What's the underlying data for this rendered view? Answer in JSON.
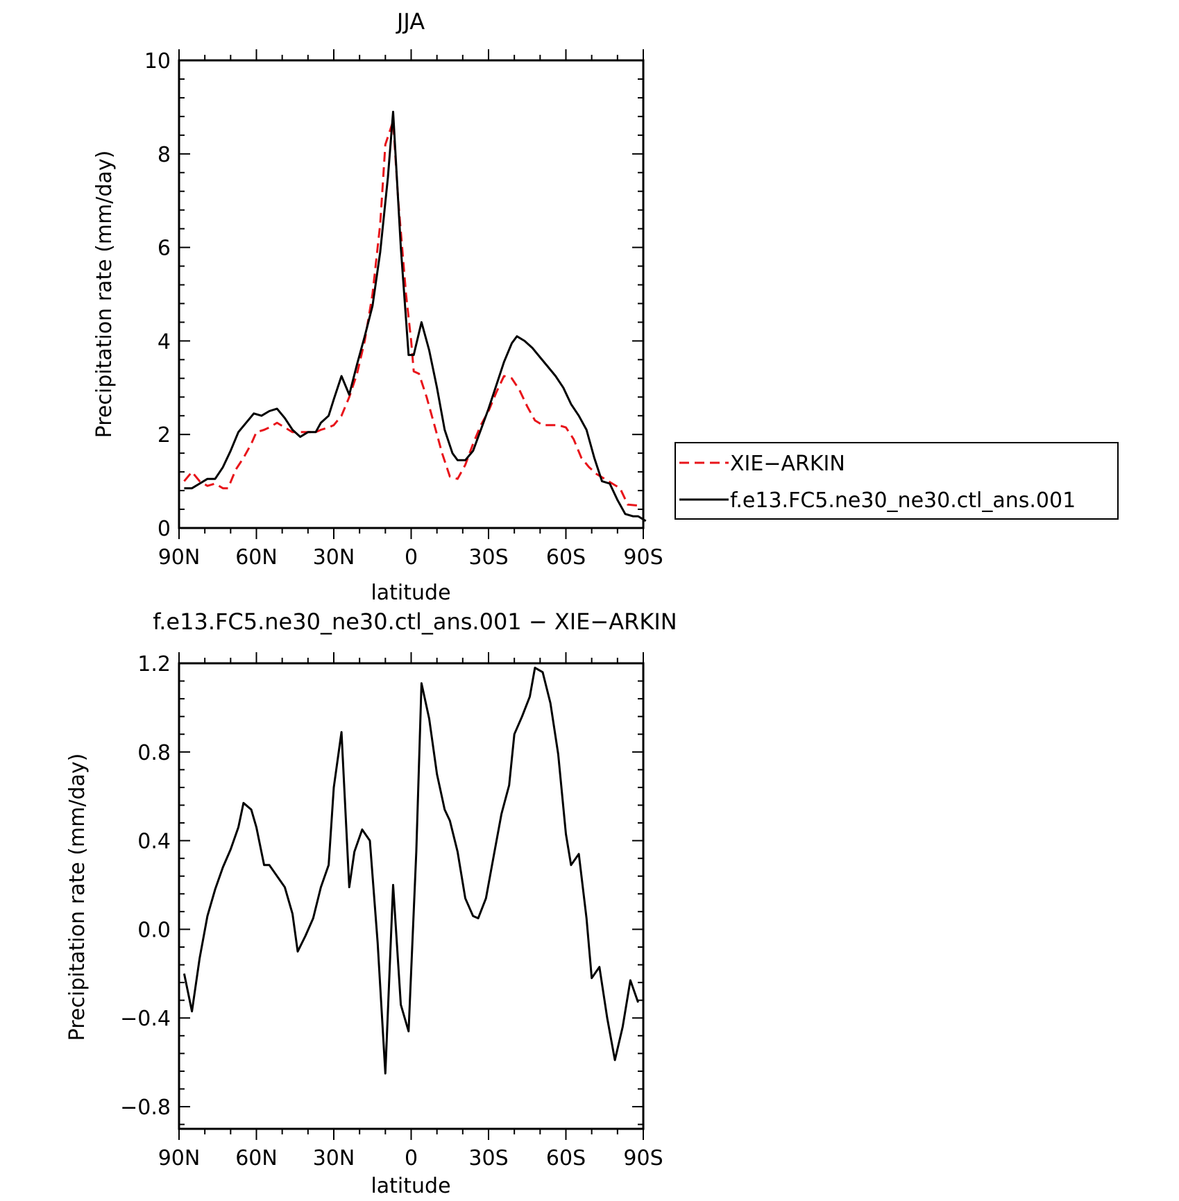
{
  "chart_data": [
    {
      "type": "line",
      "title": "JJA",
      "xlabel": "latitude",
      "ylabel": "Precipitation rate (mm/day)",
      "xlim": [
        90,
        -90
      ],
      "ylim": [
        0,
        10
      ],
      "x_ticks": [
        {
          "value": 90,
          "label": "90N"
        },
        {
          "value": 60,
          "label": "60N"
        },
        {
          "value": 30,
          "label": "30N"
        },
        {
          "value": 0,
          "label": "0"
        },
        {
          "value": -30,
          "label": "30S"
        },
        {
          "value": -60,
          "label": "60S"
        },
        {
          "value": -90,
          "label": "90S"
        }
      ],
      "y_ticks": [
        {
          "value": 0,
          "label": "0"
        },
        {
          "value": 2,
          "label": "2"
        },
        {
          "value": 4,
          "label": "4"
        },
        {
          "value": 6,
          "label": "6"
        },
        {
          "value": 8,
          "label": "8"
        },
        {
          "value": 10,
          "label": "10"
        }
      ],
      "legend_position": "right",
      "series": [
        {
          "name": "XIE−ARKIN",
          "color": "#e8141a",
          "dash": "dashed",
          "points": [
            [
              88,
              1.0
            ],
            [
              85,
              1.2
            ],
            [
              82,
              1.0
            ],
            [
              79,
              0.9
            ],
            [
              76,
              0.95
            ],
            [
              73,
              0.85
            ],
            [
              71,
              0.85
            ],
            [
              68,
              1.25
            ],
            [
              65,
              1.5
            ],
            [
              62,
              1.8
            ],
            [
              60,
              2.05
            ],
            [
              57,
              2.1
            ],
            [
              55,
              2.15
            ],
            [
              52,
              2.25
            ],
            [
              49,
              2.15
            ],
            [
              46,
              2.05
            ],
            [
              43,
              2.05
            ],
            [
              40,
              2.05
            ],
            [
              37,
              2.05
            ],
            [
              35,
              2.1
            ],
            [
              32,
              2.15
            ],
            [
              30,
              2.2
            ],
            [
              27,
              2.4
            ],
            [
              24,
              2.8
            ],
            [
              21,
              3.3
            ],
            [
              18,
              4.0
            ],
            [
              15,
              5.0
            ],
            [
              12,
              6.5
            ],
            [
              10,
              8.2
            ],
            [
              7,
              8.7
            ],
            [
              5,
              7.0
            ],
            [
              2,
              5.0
            ],
            [
              0,
              4.0
            ],
            [
              -1,
              3.35
            ],
            [
              -3,
              3.3
            ],
            [
              -6,
              2.8
            ],
            [
              -9,
              2.2
            ],
            [
              -12,
              1.6
            ],
            [
              -15,
              1.1
            ],
            [
              -18,
              1.05
            ],
            [
              -21,
              1.35
            ],
            [
              -24,
              1.8
            ],
            [
              -27,
              2.2
            ],
            [
              -30,
              2.5
            ],
            [
              -33,
              2.9
            ],
            [
              -36,
              3.25
            ],
            [
              -39,
              3.2
            ],
            [
              -42,
              2.95
            ],
            [
              -45,
              2.6
            ],
            [
              -48,
              2.3
            ],
            [
              -51,
              2.2
            ],
            [
              -54,
              2.2
            ],
            [
              -57,
              2.2
            ],
            [
              -60,
              2.15
            ],
            [
              -63,
              1.9
            ],
            [
              -66,
              1.5
            ],
            [
              -69,
              1.3
            ],
            [
              -72,
              1.15
            ],
            [
              -75,
              1.05
            ],
            [
              -78,
              0.95
            ],
            [
              -81,
              0.85
            ],
            [
              -84,
              0.5
            ],
            [
              -88,
              0.48
            ]
          ]
        },
        {
          "name": "f.e13.FC5.ne30_ne30.ctl_ans.001",
          "color": "#000000",
          "dash": "solid",
          "points": [
            [
              88,
              0.85
            ],
            [
              85,
              0.85
            ],
            [
              82,
              0.95
            ],
            [
              79,
              1.05
            ],
            [
              76,
              1.05
            ],
            [
              73,
              1.3
            ],
            [
              70,
              1.65
            ],
            [
              67,
              2.05
            ],
            [
              64,
              2.25
            ],
            [
              61,
              2.45
            ],
            [
              58,
              2.4
            ],
            [
              55,
              2.5
            ],
            [
              52,
              2.55
            ],
            [
              49,
              2.35
            ],
            [
              46,
              2.1
            ],
            [
              43,
              1.95
            ],
            [
              40,
              2.05
            ],
            [
              37,
              2.05
            ],
            [
              35,
              2.25
            ],
            [
              32,
              2.4
            ],
            [
              30,
              2.75
            ],
            [
              27,
              3.25
            ],
            [
              24,
              2.85
            ],
            [
              21,
              3.5
            ],
            [
              18,
              4.1
            ],
            [
              15,
              4.75
            ],
            [
              12,
              5.9
            ],
            [
              9,
              7.5
            ],
            [
              7,
              8.9
            ],
            [
              4,
              6.0
            ],
            [
              1,
              3.7
            ],
            [
              -1,
              3.7
            ],
            [
              -4,
              4.4
            ],
            [
              -7,
              3.8
            ],
            [
              -10,
              3.0
            ],
            [
              -13,
              2.1
            ],
            [
              -16,
              1.6
            ],
            [
              -18,
              1.45
            ],
            [
              -21,
              1.45
            ],
            [
              -24,
              1.65
            ],
            [
              -27,
              2.1
            ],
            [
              -30,
              2.55
            ],
            [
              -33,
              3.05
            ],
            [
              -36,
              3.55
            ],
            [
              -39,
              3.95
            ],
            [
              -41,
              4.1
            ],
            [
              -44,
              4.0
            ],
            [
              -47,
              3.85
            ],
            [
              -50,
              3.65
            ],
            [
              -53,
              3.45
            ],
            [
              -56,
              3.25
            ],
            [
              -59,
              3.0
            ],
            [
              -62,
              2.65
            ],
            [
              -65,
              2.4
            ],
            [
              -68,
              2.1
            ],
            [
              -71,
              1.5
            ],
            [
              -74,
              1.0
            ],
            [
              -77,
              0.95
            ],
            [
              -80,
              0.6
            ],
            [
              -83,
              0.3
            ],
            [
              -86,
              0.25
            ],
            [
              -88,
              0.25
            ],
            [
              -91,
              0.15
            ]
          ]
        }
      ]
    },
    {
      "type": "line",
      "title": "f.e13.FC5.ne30_ne30.ctl_ans.001  −  XIE−ARKIN",
      "xlabel": "latitude",
      "ylabel": "Precipitation rate (mm/day)",
      "xlim": [
        90,
        -90
      ],
      "ylim": [
        -0.9,
        1.2
      ],
      "x_ticks": [
        {
          "value": 90,
          "label": "90N"
        },
        {
          "value": 60,
          "label": "60N"
        },
        {
          "value": 30,
          "label": "30N"
        },
        {
          "value": 0,
          "label": "0"
        },
        {
          "value": -30,
          "label": "30S"
        },
        {
          "value": -60,
          "label": "60S"
        },
        {
          "value": -90,
          "label": "90S"
        }
      ],
      "y_ticks": [
        {
          "value": -0.8,
          "label": "−0.8"
        },
        {
          "value": -0.4,
          "label": "−0.4"
        },
        {
          "value": 0.0,
          "label": "0.0"
        },
        {
          "value": 0.4,
          "label": "0.4"
        },
        {
          "value": 0.8,
          "label": "0.8"
        },
        {
          "value": 1.2,
          "label": "1.2"
        }
      ],
      "series": [
        {
          "color": "#000000",
          "dash": "solid",
          "points": [
            [
              88,
              -0.2
            ],
            [
              85,
              -0.37
            ],
            [
              82,
              -0.13
            ],
            [
              79,
              0.06
            ],
            [
              76,
              0.18
            ],
            [
              73,
              0.28
            ],
            [
              70,
              0.36
            ],
            [
              67,
              0.46
            ],
            [
              65,
              0.57
            ],
            [
              62,
              0.54
            ],
            [
              60,
              0.46
            ],
            [
              57,
              0.29
            ],
            [
              55,
              0.29
            ],
            [
              52,
              0.24
            ],
            [
              49,
              0.19
            ],
            [
              46,
              0.07
            ],
            [
              44,
              -0.1
            ],
            [
              41,
              -0.03
            ],
            [
              38,
              0.05
            ],
            [
              35,
              0.19
            ],
            [
              32,
              0.29
            ],
            [
              30,
              0.64
            ],
            [
              27,
              0.89
            ],
            [
              24,
              0.19
            ],
            [
              22,
              0.35
            ],
            [
              19,
              0.45
            ],
            [
              16,
              0.4
            ],
            [
              13,
              -0.06
            ],
            [
              10,
              -0.65
            ],
            [
              7,
              0.2
            ],
            [
              4,
              -0.34
            ],
            [
              1,
              -0.46
            ],
            [
              -2,
              0.35
            ],
            [
              -4,
              1.11
            ],
            [
              -7,
              0.95
            ],
            [
              -10,
              0.7
            ],
            [
              -13,
              0.54
            ],
            [
              -15,
              0.49
            ],
            [
              -18,
              0.35
            ],
            [
              -21,
              0.14
            ],
            [
              -24,
              0.06
            ],
            [
              -26,
              0.05
            ],
            [
              -29,
              0.14
            ],
            [
              -32,
              0.33
            ],
            [
              -35,
              0.52
            ],
            [
              -38,
              0.65
            ],
            [
              -40,
              0.88
            ],
            [
              -43,
              0.96
            ],
            [
              -46,
              1.05
            ],
            [
              -48,
              1.18
            ],
            [
              -51,
              1.16
            ],
            [
              -54,
              1.02
            ],
            [
              -57,
              0.79
            ],
            [
              -60,
              0.43
            ],
            [
              -62,
              0.29
            ],
            [
              -65,
              0.34
            ],
            [
              -68,
              0.05
            ],
            [
              -70,
              -0.22
            ],
            [
              -73,
              -0.17
            ],
            [
              -76,
              -0.4
            ],
            [
              -79,
              -0.59
            ],
            [
              -82,
              -0.44
            ],
            [
              -85,
              -0.23
            ],
            [
              -88,
              -0.33
            ]
          ]
        }
      ]
    }
  ]
}
